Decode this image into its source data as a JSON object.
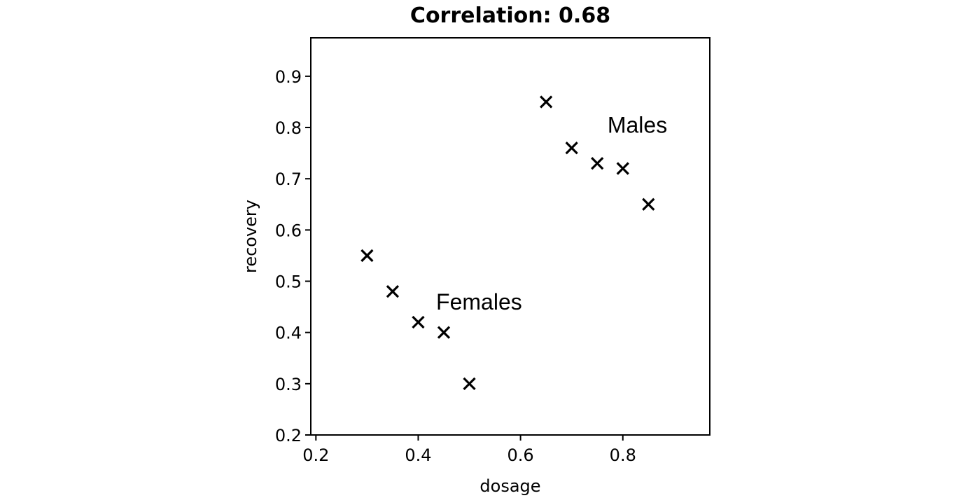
{
  "chart_data": {
    "type": "scatter",
    "title": "Correlation: 0.68",
    "xlabel": "dosage",
    "ylabel": "recovery",
    "xlim": [
      0.19,
      0.97
    ],
    "ylim": [
      0.2,
      0.975
    ],
    "xticks": [
      0.2,
      0.4,
      0.6,
      0.8
    ],
    "xtick_labels": [
      "0.2",
      "0.4",
      "0.6",
      "0.8"
    ],
    "yticks": [
      0.2,
      0.3,
      0.4,
      0.5,
      0.6,
      0.7,
      0.8,
      0.9
    ],
    "ytick_labels": [
      "0.2",
      "0.3",
      "0.4",
      "0.5",
      "0.6",
      "0.7",
      "0.8",
      "0.9"
    ],
    "grid": false,
    "marker": "x",
    "marker_color": "#000000",
    "series": [
      {
        "points": [
          {
            "x": 0.3,
            "y": 0.55
          },
          {
            "x": 0.35,
            "y": 0.48
          },
          {
            "x": 0.4,
            "y": 0.42
          },
          {
            "x": 0.45,
            "y": 0.4
          },
          {
            "x": 0.5,
            "y": 0.3
          }
        ]
      },
      {
        "points": [
          {
            "x": 0.65,
            "y": 0.85
          },
          {
            "x": 0.7,
            "y": 0.76
          },
          {
            "x": 0.75,
            "y": 0.73
          },
          {
            "x": 0.8,
            "y": 0.72
          },
          {
            "x": 0.85,
            "y": 0.65
          }
        ]
      }
    ],
    "annotations": [
      {
        "text": "Females",
        "x": 0.435,
        "y": 0.445
      },
      {
        "text": "Males",
        "x": 0.77,
        "y": 0.79
      }
    ]
  }
}
